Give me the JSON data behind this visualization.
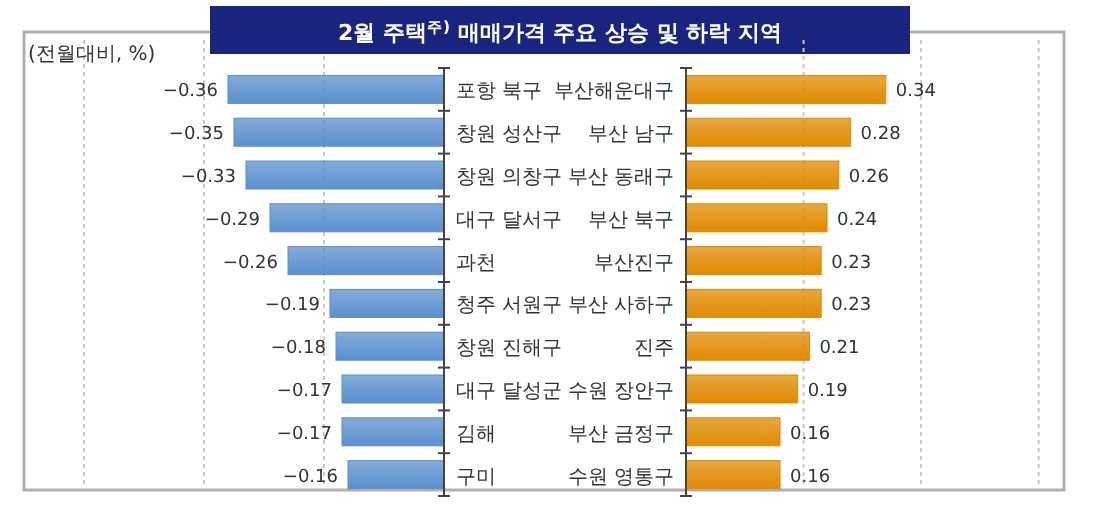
{
  "chart_data": [
    {
      "type": "bar",
      "orientation": "horizontal",
      "title": "2월 주택$^{주)}$ 매매가격 주요 상승 및 하락 지역",
      "annotations": [
        "(전월대비, %)"
      ],
      "categories": [
        "포항 북구",
        "창원 성산구",
        "창원 의창구",
        "대구 달서구",
        "과천",
        "청주 서원구",
        "창원 진해구",
        "대구 달성군",
        "김해",
        "구미"
      ],
      "series": [
        {
          "color": "#5b8fce",
          "values": [
            -0.36,
            -0.35,
            -0.33,
            -0.29,
            -0.26,
            -0.19,
            -0.18,
            -0.17,
            -0.17,
            -0.16
          ]
        }
      ],
      "xlim": [
        -0.7,
        0
      ],
      "xticks": [
        {
          "value": -0.6,
          "label": null
        },
        {
          "value": -0.4,
          "label": null
        },
        {
          "value": -0.2,
          "label": null
        }
      ],
      "grid": "x",
      "data_labels": true
    },
    {
      "type": "bar",
      "orientation": "horizontal",
      "categories": [
        "부산해운대구",
        "부산 남구",
        "부산 동래구",
        "부산 북구",
        "부산진구",
        "부산 사하구",
        "진주",
        "수원 장안구",
        "부산 금정구",
        "수원 영통구"
      ],
      "series": [
        {
          "color": "#e08a00",
          "values": [
            0.34,
            0.28,
            0.26,
            0.24,
            0.23,
            0.23,
            0.21,
            0.19,
            0.16,
            0.16
          ]
        }
      ],
      "xlim": [
        0,
        0.65
      ],
      "xticks": [
        {
          "value": 0.2,
          "label": null
        },
        {
          "value": 0.4,
          "label": null
        },
        {
          "value": 0.6,
          "label": null
        }
      ],
      "grid": "x",
      "data_labels": true
    }
  ]
}
